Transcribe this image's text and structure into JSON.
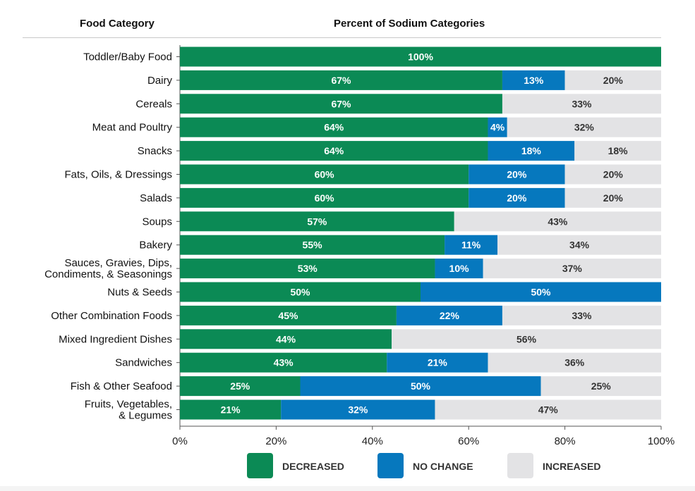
{
  "header": {
    "category_title": "Food Category",
    "chart_title": "Percent of Sodium Categories"
  },
  "colors": {
    "decreased": "#0b8a55",
    "no_change": "#0678be",
    "increased": "#e3e3e5",
    "text_dark": "#333333",
    "text_light": "#ffffff"
  },
  "legend": [
    {
      "label": "DECREASED",
      "color": "#0b8a55"
    },
    {
      "label": "NO CHANGE",
      "color": "#0678be"
    },
    {
      "label": "INCREASED",
      "color": "#e3e3e5"
    }
  ],
  "chart_data": {
    "type": "bar",
    "orientation": "horizontal",
    "stacked": true,
    "title": "Percent of Sodium Categories",
    "ylabel": "Food Category",
    "xlabel": "",
    "xlim": [
      0,
      100
    ],
    "x_ticks": [
      "0%",
      "20%",
      "40%",
      "60%",
      "80%",
      "100%"
    ],
    "x_tick_values": [
      0,
      20,
      40,
      60,
      80,
      100
    ],
    "legend_position": "bottom",
    "grid": false,
    "categories": [
      [
        "Toddler/Baby Food"
      ],
      [
        "Dairy"
      ],
      [
        "Cereals"
      ],
      [
        "Meat and Poultry"
      ],
      [
        "Snacks"
      ],
      [
        "Fats, Oils, & Dressings"
      ],
      [
        "Salads"
      ],
      [
        "Soups"
      ],
      [
        "Bakery"
      ],
      [
        "Sauces, Gravies, Dips,",
        "Condiments, & Seasonings"
      ],
      [
        "Nuts & Seeds"
      ],
      [
        "Other Combination Foods"
      ],
      [
        "Mixed Ingredient Dishes"
      ],
      [
        "Sandwiches"
      ],
      [
        "Fish & Other Seafood"
      ],
      [
        "Fruits, Vegetables,",
        "& Legumes"
      ]
    ],
    "series": [
      {
        "name": "DECREASED",
        "values": [
          100,
          67,
          67,
          64,
          64,
          60,
          60,
          57,
          55,
          53,
          50,
          45,
          44,
          43,
          25,
          21
        ]
      },
      {
        "name": "NO CHANGE",
        "values": [
          0,
          13,
          0,
          4,
          18,
          20,
          20,
          0,
          11,
          10,
          50,
          22,
          0,
          21,
          50,
          32
        ]
      },
      {
        "name": "INCREASED",
        "values": [
          0,
          20,
          33,
          32,
          18,
          20,
          20,
          43,
          34,
          37,
          0,
          33,
          56,
          36,
          25,
          47
        ]
      }
    ]
  }
}
